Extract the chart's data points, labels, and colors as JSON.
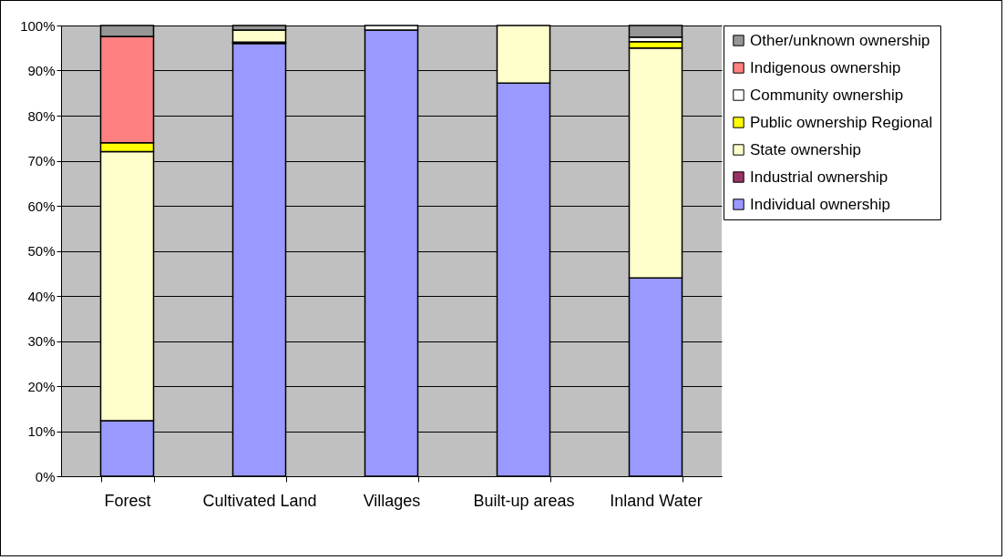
{
  "chart_data": {
    "type": "bar",
    "stacked": true,
    "categories": [
      "Forest",
      "Cultivated Land",
      "Villages",
      "Built-up areas",
      "Inland Water"
    ],
    "series": [
      {
        "name": "Individual ownership",
        "color": "#9999ff",
        "values": [
          12.3,
          96,
          99,
          87.2,
          44
        ]
      },
      {
        "name": "Industrial ownership",
        "color": "#993366",
        "values": [
          null,
          0.3,
          null,
          null,
          null
        ]
      },
      {
        "name": "State ownership",
        "color": "#ffffcc",
        "values": [
          59.7,
          2.7,
          null,
          12.8,
          51
        ]
      },
      {
        "name": "Public ownership Regional",
        "color": "#ffff00",
        "values": [
          2,
          null,
          null,
          null,
          1.4
        ]
      },
      {
        "name": "Community ownership",
        "color": "#ffffff",
        "values": [
          null,
          null,
          1,
          null,
          1
        ]
      },
      {
        "name": "Indigenous ownership",
        "color": "#ff8080",
        "values": [
          23.6,
          null,
          null,
          null,
          null
        ]
      },
      {
        "name": "Other/unknown ownership",
        "color": "#969696",
        "values": [
          2.4,
          1,
          null,
          null,
          2.6
        ]
      }
    ],
    "ylim": [
      0,
      100
    ],
    "yticks": [
      {
        "value": 0,
        "label": "0%"
      },
      {
        "value": 10,
        "label": "10%"
      },
      {
        "value": 20,
        "label": "20%"
      },
      {
        "value": 30,
        "label": "30%"
      },
      {
        "value": 40,
        "label": "40%"
      },
      {
        "value": 50,
        "label": "50%"
      },
      {
        "value": 60,
        "label": "60%"
      },
      {
        "value": 70,
        "label": "70%"
      },
      {
        "value": 80,
        "label": "80%"
      },
      {
        "value": 90,
        "label": "90%"
      },
      {
        "value": 100,
        "label": "100%"
      }
    ],
    "grid": "y",
    "legend": "right"
  }
}
